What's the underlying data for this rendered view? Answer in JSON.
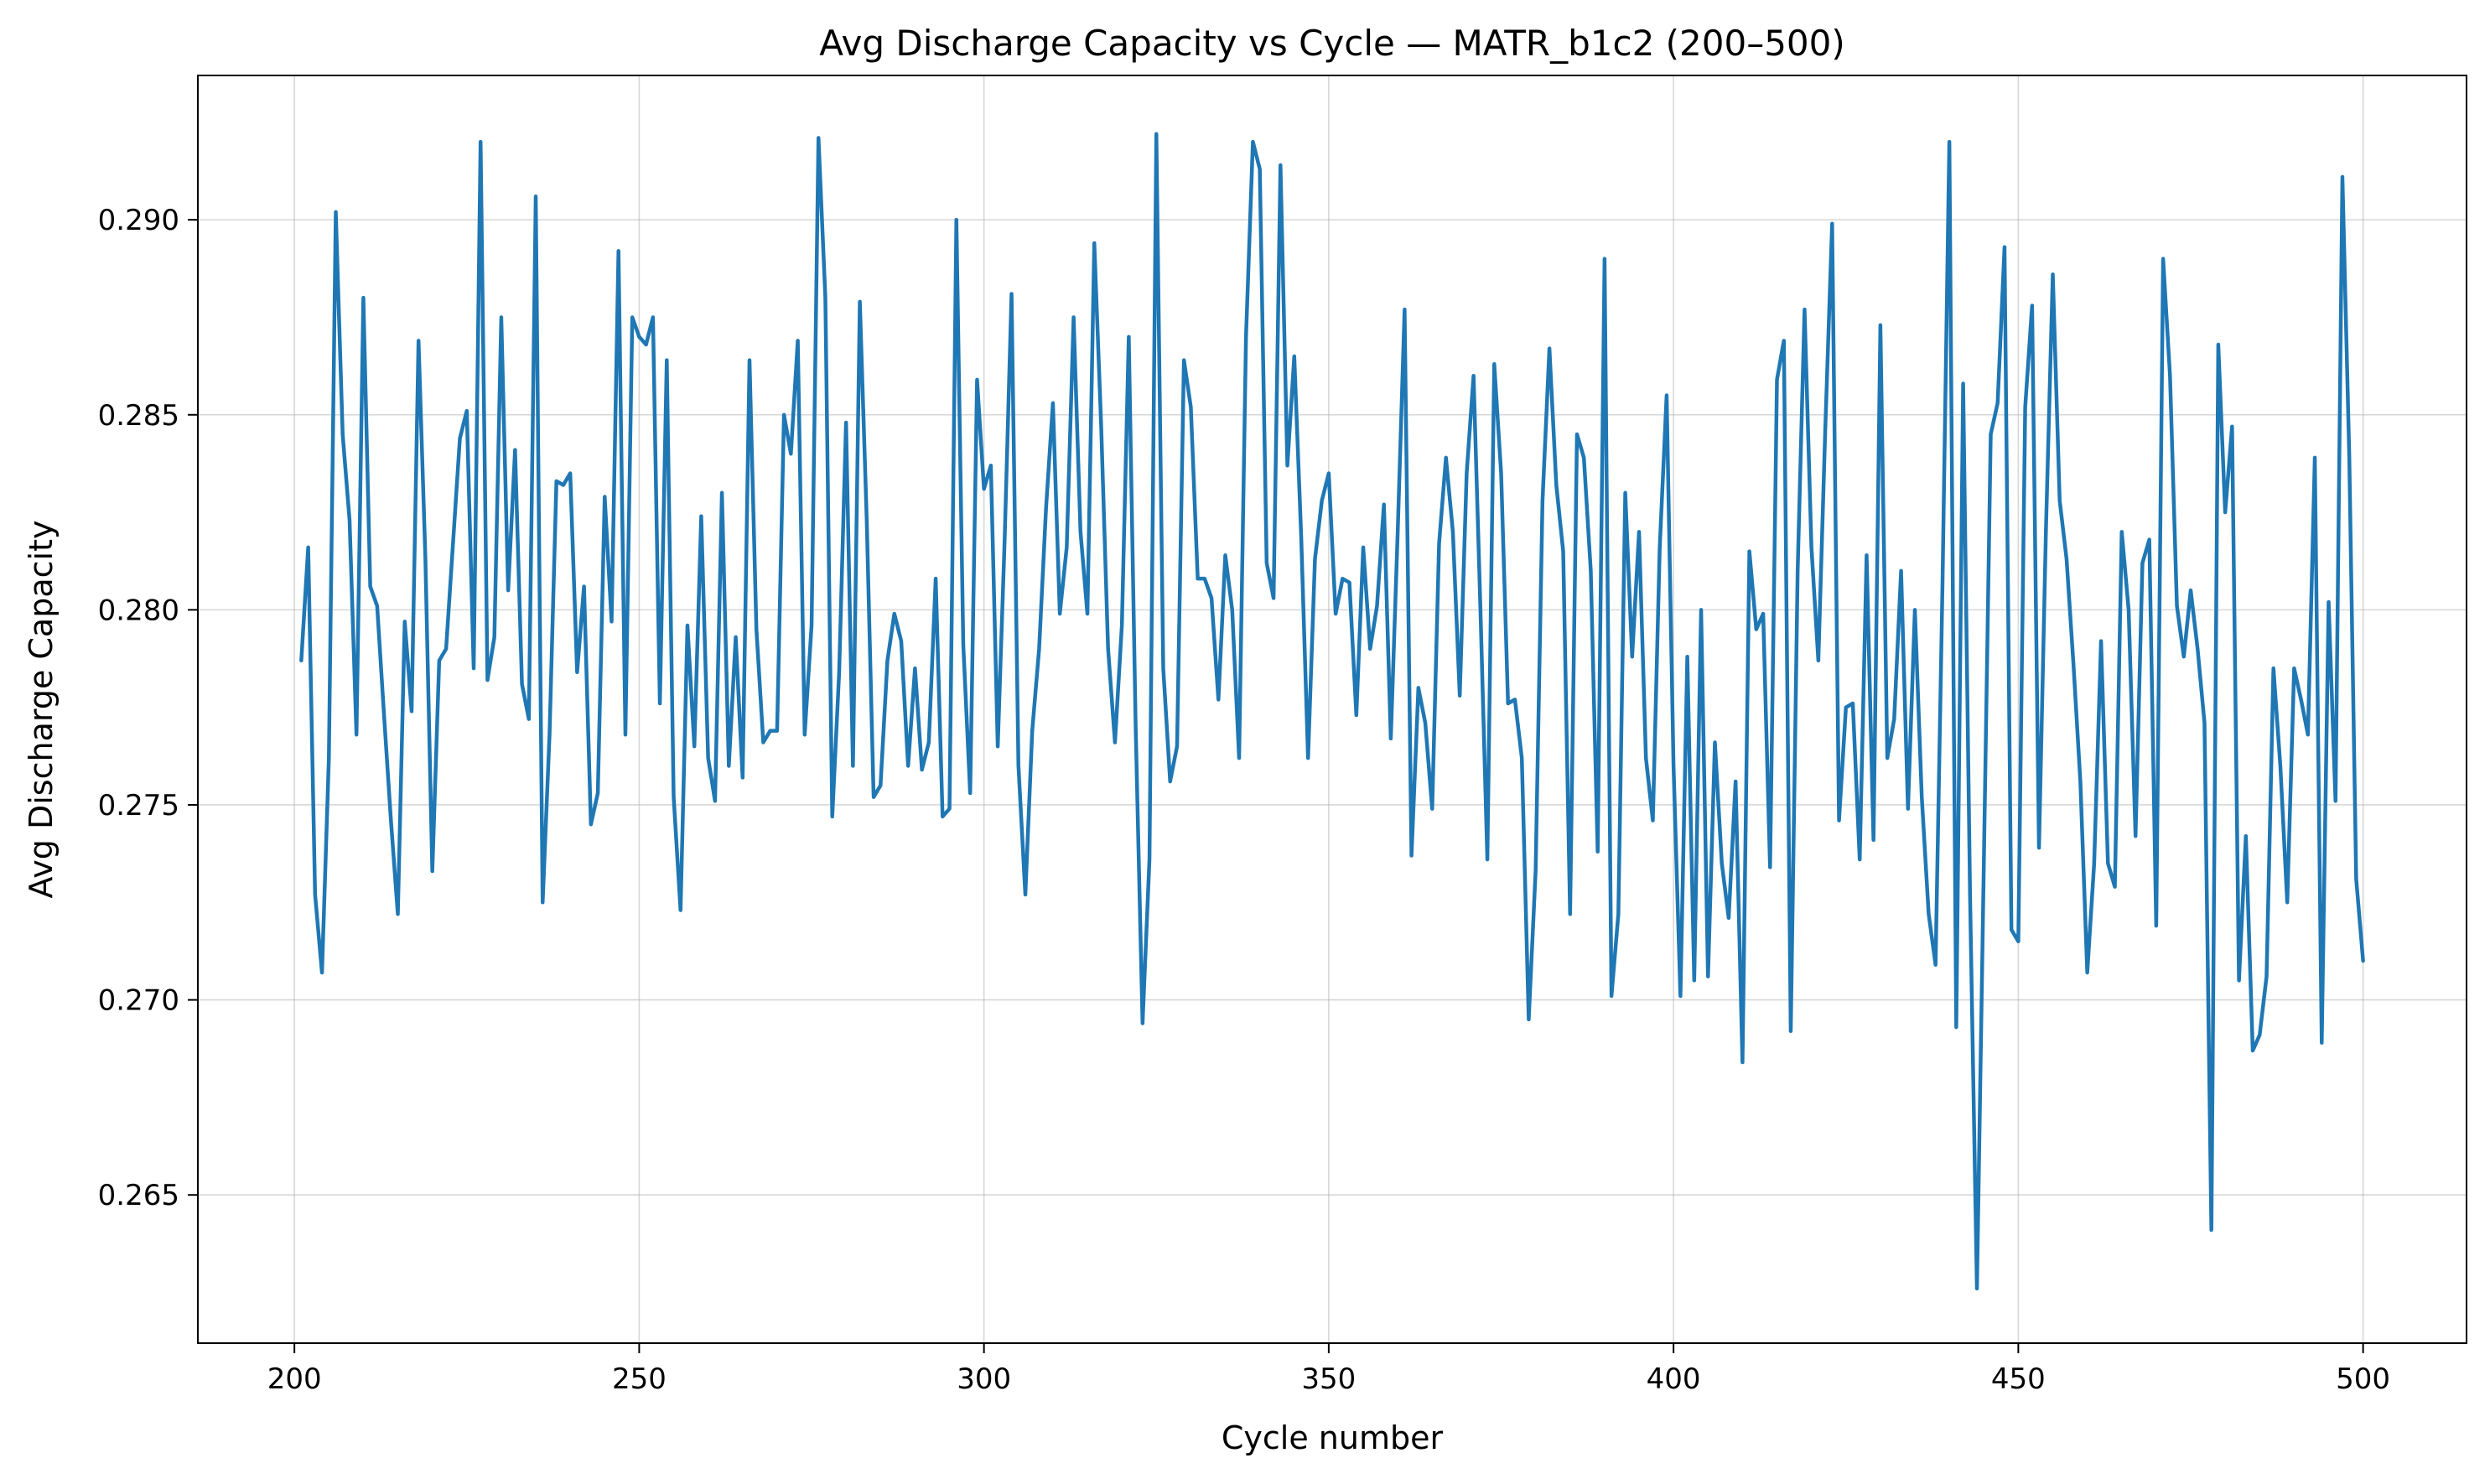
{
  "chart_data": {
    "type": "line",
    "title": "Avg Discharge Capacity vs Cycle — MATR_b1c2 (200–500)",
    "xlabel": "Cycle number",
    "ylabel": "Avg Discharge Capacity",
    "xlim": [
      186,
      515
    ],
    "ylim": [
      0.2612,
      0.2937
    ],
    "x_ticks": [
      200,
      250,
      300,
      350,
      400,
      450,
      500
    ],
    "x_tick_labels": [
      "200",
      "250",
      "300",
      "350",
      "400",
      "450",
      "500"
    ],
    "y_ticks": [
      0.265,
      0.27,
      0.275,
      0.28,
      0.285,
      0.29
    ],
    "y_tick_labels": [
      "0.265",
      "0.270",
      "0.275",
      "0.280",
      "0.285",
      "0.290"
    ],
    "grid": true,
    "legend": "none",
    "series": [
      {
        "color": "#1f77b4",
        "x_start": 201,
        "x_step": 1,
        "values": [
          0.2787,
          0.2816,
          0.2727,
          0.2707,
          0.2762,
          0.2902,
          0.2845,
          0.2823,
          0.2768,
          0.288,
          0.2806,
          0.2801,
          0.2773,
          0.2746,
          0.2722,
          0.2797,
          0.2774,
          0.2869,
          0.2813,
          0.2733,
          0.2787,
          0.279,
          0.2817,
          0.2844,
          0.2851,
          0.2785,
          0.292,
          0.2782,
          0.2793,
          0.2875,
          0.2805,
          0.2841,
          0.2781,
          0.2772,
          0.2906,
          0.2725,
          0.2768,
          0.2833,
          0.2832,
          0.2835,
          0.2784,
          0.2806,
          0.2745,
          0.2753,
          0.2829,
          0.2797,
          0.2892,
          0.2768,
          0.2875,
          0.287,
          0.2868,
          0.2875,
          0.2776,
          0.2864,
          0.2752,
          0.2723,
          0.2796,
          0.2765,
          0.2824,
          0.2762,
          0.2751,
          0.283,
          0.276,
          0.2793,
          0.2757,
          0.2864,
          0.2795,
          0.2766,
          0.2769,
          0.2769,
          0.285,
          0.284,
          0.2869,
          0.2768,
          0.2796,
          0.2921,
          0.288,
          0.2747,
          0.2784,
          0.2848,
          0.276,
          0.2879,
          0.2823,
          0.2752,
          0.2755,
          0.2787,
          0.2799,
          0.2792,
          0.276,
          0.2785,
          0.2759,
          0.2766,
          0.2808,
          0.2747,
          0.2749,
          0.29,
          0.2791,
          0.2753,
          0.2859,
          0.2831,
          0.2837,
          0.2765,
          0.2818,
          0.2881,
          0.276,
          0.2727,
          0.2769,
          0.279,
          0.2826,
          0.2853,
          0.2799,
          0.2816,
          0.2875,
          0.282,
          0.2799,
          0.2894,
          0.2847,
          0.279,
          0.2766,
          0.2796,
          0.287,
          0.277,
          0.2694,
          0.2736,
          0.2922,
          0.2785,
          0.2756,
          0.2765,
          0.2864,
          0.2852,
          0.2808,
          0.2808,
          0.2803,
          0.2777,
          0.2814,
          0.28,
          0.2762,
          0.287,
          0.292,
          0.2913,
          0.2812,
          0.2803,
          0.2914,
          0.2837,
          0.2865,
          0.2819,
          0.2762,
          0.2813,
          0.2828,
          0.2835,
          0.2799,
          0.2808,
          0.2807,
          0.2773,
          0.2816,
          0.279,
          0.2801,
          0.2827,
          0.2767,
          0.282,
          0.2877,
          0.2737,
          0.278,
          0.2771,
          0.2749,
          0.2817,
          0.2839,
          0.282,
          0.2778,
          0.2835,
          0.286,
          0.28,
          0.2736,
          0.2863,
          0.2835,
          0.2776,
          0.2777,
          0.2762,
          0.2695,
          0.2733,
          0.2828,
          0.2867,
          0.2832,
          0.2815,
          0.2722,
          0.2845,
          0.2839,
          0.281,
          0.2738,
          0.289,
          0.2701,
          0.2722,
          0.283,
          0.2788,
          0.282,
          0.2762,
          0.2746,
          0.2816,
          0.2855,
          0.276,
          0.2701,
          0.2788,
          0.2705,
          0.28,
          0.2706,
          0.2766,
          0.2735,
          0.2721,
          0.2756,
          0.2684,
          0.2815,
          0.2795,
          0.2799,
          0.2734,
          0.2859,
          0.2869,
          0.2692,
          0.281,
          0.2877,
          0.2816,
          0.2787,
          0.2846,
          0.2899,
          0.2746,
          0.2775,
          0.2776,
          0.2736,
          0.2814,
          0.2741,
          0.2873,
          0.2762,
          0.2772,
          0.281,
          0.2749,
          0.28,
          0.2752,
          0.2722,
          0.2709,
          0.2806,
          0.292,
          0.2693,
          0.2858,
          0.2727,
          0.2626,
          0.2735,
          0.2845,
          0.2853,
          0.2893,
          0.2718,
          0.2715,
          0.2852,
          0.2878,
          0.2739,
          0.282,
          0.2886,
          0.2828,
          0.2813,
          0.2786,
          0.2756,
          0.2707,
          0.2735,
          0.2792,
          0.2735,
          0.2729,
          0.282,
          0.28,
          0.2742,
          0.2812,
          0.2818,
          0.2719,
          0.289,
          0.286,
          0.2801,
          0.2788,
          0.2805,
          0.279,
          0.2771,
          0.2641,
          0.2868,
          0.2825,
          0.2847,
          0.2705,
          0.2742,
          0.2687,
          0.2691,
          0.2706,
          0.2785,
          0.276,
          0.2725,
          0.2785,
          0.2777,
          0.2768,
          0.2839,
          0.2689,
          0.2802,
          0.2751,
          0.2911,
          0.2839,
          0.2731,
          0.271
        ]
      }
    ]
  }
}
